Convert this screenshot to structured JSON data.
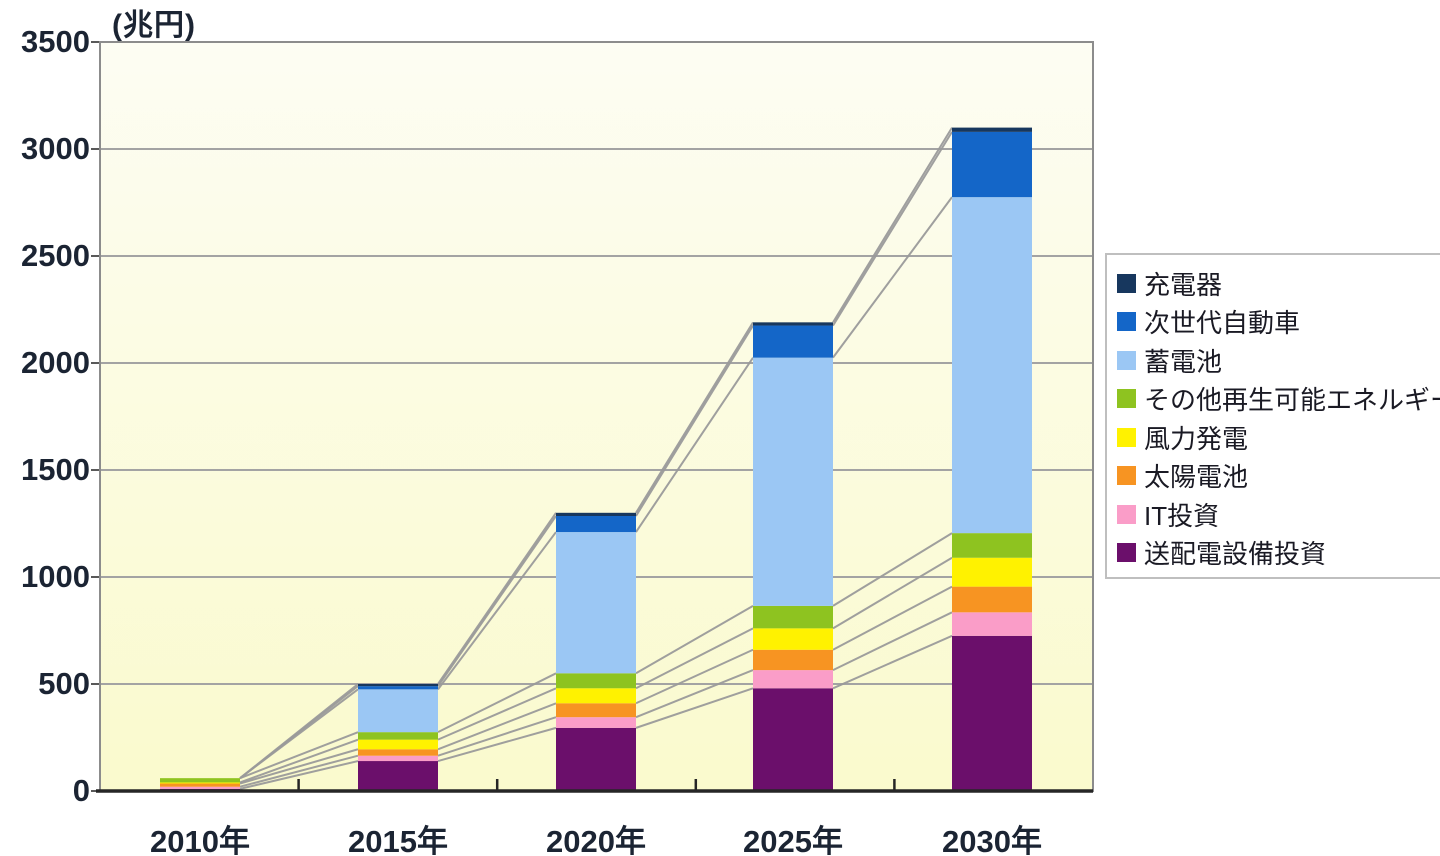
{
  "title_unit": "(兆円)",
  "chart_data": {
    "type": "bar",
    "stacked": true,
    "title": "(兆円)",
    "xlabel": "",
    "ylabel": "兆円",
    "ylim": [
      0,
      3500
    ],
    "y_ticks": [
      0,
      500,
      1000,
      1500,
      2000,
      2500,
      3000,
      3500
    ],
    "grid": true,
    "series_connector_lines": true,
    "legend_position": "right",
    "categories": [
      "2010年",
      "2015年",
      "2020年",
      "2025年",
      "2030年"
    ],
    "series": [
      {
        "name": "送配電設備投資",
        "color": "#6b0f6b",
        "values": [
          10,
          140,
          295,
          480,
          725
        ]
      },
      {
        "name": "IT投資",
        "color": "#fa9dc8",
        "values": [
          10,
          25,
          50,
          85,
          110
        ]
      },
      {
        "name": "太陽電池",
        "color": "#f79422",
        "values": [
          15,
          30,
          65,
          95,
          120
        ]
      },
      {
        "name": "風力発電",
        "color": "#fff200",
        "values": [
          5,
          45,
          70,
          100,
          135
        ]
      },
      {
        "name": "その他再生可能エネルギー",
        "color": "#8ec320",
        "values": [
          20,
          35,
          70,
          105,
          115
        ]
      },
      {
        "name": "蓄電池",
        "color": "#9bc7f4",
        "values": [
          0,
          200,
          660,
          1160,
          1570
        ]
      },
      {
        "name": "次世代自動車",
        "color": "#1466c8",
        "values": [
          0,
          15,
          75,
          150,
          305
        ]
      },
      {
        "name": "充電器",
        "color": "#17375e",
        "values": [
          0,
          10,
          15,
          15,
          20
        ]
      }
    ],
    "totals": [
      60,
      500,
      1300,
      2190,
      3100
    ],
    "legend_order_top_to_bottom": [
      "充電器",
      "次世代自動車",
      "蓄電池",
      "その他再生可能エネルギー",
      "風力発電",
      "太陽電池",
      "IT投資",
      "送配電設備投資"
    ]
  },
  "style_colors": {
    "plot_bg_top": "#fdfdf3",
    "plot_bg_bottom": "#fafacd",
    "gridline": "#a3a3a3",
    "plot_border": "#8c8c8c",
    "axis_line": "#262626",
    "series_line": "#9a9a9a",
    "text": "#1b2433"
  }
}
